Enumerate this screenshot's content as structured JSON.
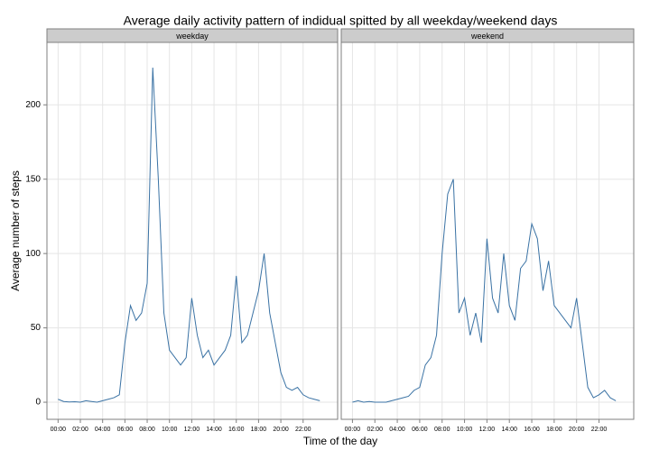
{
  "chart_data": {
    "type": "line",
    "title": "Average daily activity pattern of indidual spitted by all weekday/weekend days",
    "x_label": "Time of the day",
    "y_label": "Average number of steps",
    "x": [
      0,
      0.5,
      1,
      1.5,
      2,
      2.5,
      3,
      3.5,
      4,
      4.5,
      5,
      5.5,
      6,
      6.5,
      7,
      7.5,
      8,
      8.5,
      9,
      9.5,
      10,
      10.5,
      11,
      11.5,
      12,
      12.5,
      13,
      13.5,
      14,
      14.5,
      15,
      15.5,
      16,
      16.5,
      17,
      17.5,
      18,
      18.5,
      19,
      19.5,
      20,
      20.5,
      21,
      21.5,
      22,
      22.5,
      23,
      23.5
    ],
    "series": [
      {
        "name": "weekday",
        "color": "#3a72a4",
        "values": [
          2,
          0.5,
          0.2,
          0.3,
          0,
          1,
          0.5,
          0,
          1,
          2,
          3,
          5,
          40,
          65,
          55,
          60,
          80,
          225,
          150,
          60,
          35,
          30,
          25,
          30,
          70,
          45,
          30,
          35,
          25,
          30,
          35,
          45,
          85,
          40,
          45,
          60,
          75,
          100,
          60,
          40,
          20,
          10,
          8,
          10,
          5,
          3,
          2,
          1
        ]
      },
      {
        "name": "weekend",
        "color": "#3a72a4",
        "values": [
          0,
          1,
          0,
          0.5,
          0,
          0,
          0,
          1,
          2,
          3,
          4,
          8,
          10,
          25,
          30,
          45,
          100,
          140,
          150,
          60,
          70,
          45,
          60,
          40,
          110,
          70,
          60,
          100,
          65,
          55,
          90,
          95,
          120,
          110,
          75,
          95,
          65,
          60,
          55,
          50,
          70,
          40,
          10,
          3,
          5,
          8,
          3,
          1
        ]
      }
    ],
    "xlim": [
      -1.0,
      25.1
    ],
    "ylim": [
      -11.5,
      242
    ],
    "xticks": [
      {
        "value": 0,
        "label": "00:00"
      },
      {
        "value": 2,
        "label": "02:00"
      },
      {
        "value": 4,
        "label": "04:00"
      },
      {
        "value": 6,
        "label": "06:00"
      },
      {
        "value": 8,
        "label": "08:00"
      },
      {
        "value": 10,
        "label": "10:00"
      },
      {
        "value": 12,
        "label": "12:00"
      },
      {
        "value": 14,
        "label": "14:00"
      },
      {
        "value": 16,
        "label": "16:00"
      },
      {
        "value": 18,
        "label": "18:00"
      },
      {
        "value": 20,
        "label": "20:00"
      },
      {
        "value": 22,
        "label": "22:00"
      }
    ],
    "yticks": [
      0,
      50,
      100,
      150,
      200
    ],
    "grid": true
  }
}
